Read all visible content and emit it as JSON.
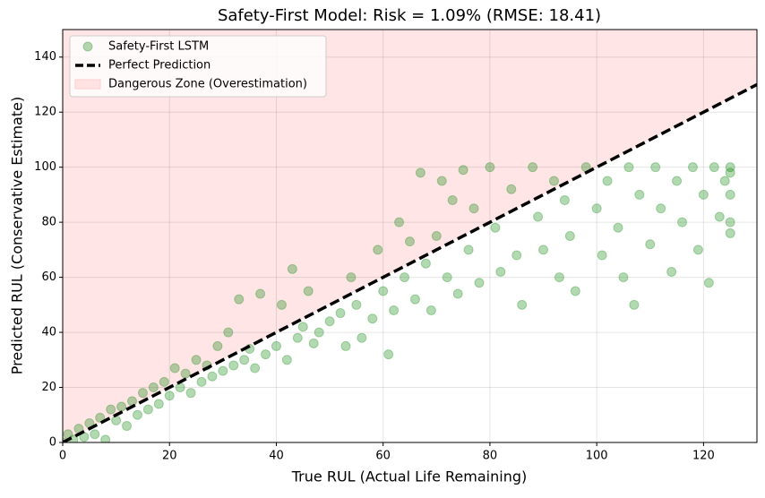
{
  "chart_data": {
    "type": "scatter",
    "title": "Safety-First Model: Risk = 1.09% (RMSE: 18.41)",
    "xlabel": "True RUL (Actual Life Remaining)",
    "ylabel": "Predicted RUL (Conservative Estimate)",
    "xlim": [
      0,
      130
    ],
    "ylim": [
      0,
      150
    ],
    "xticks": [
      0,
      20,
      40,
      60,
      80,
      100,
      120
    ],
    "yticks": [
      0,
      20,
      40,
      60,
      80,
      100,
      120,
      140
    ],
    "grid": true,
    "legend": "upper left",
    "region": {
      "name": "Dangerous Zone (Overestimation)",
      "color": "#ffcccc"
    },
    "line": {
      "name": "Perfect Prediction",
      "color": "#000000",
      "x": [
        0,
        130
      ],
      "y": [
        0,
        130
      ]
    },
    "series": [
      {
        "name": "Safety-First LSTM",
        "color": "#008000",
        "x": [
          0,
          1,
          2,
          3,
          4,
          5,
          6,
          7,
          8,
          9,
          10,
          11,
          12,
          13,
          14,
          15,
          16,
          17,
          18,
          19,
          20,
          21,
          22,
          23,
          24,
          25,
          26,
          27,
          28,
          29,
          30,
          31,
          32,
          33,
          34,
          35,
          36,
          37,
          38,
          40,
          41,
          42,
          43,
          44,
          45,
          46,
          47,
          48,
          50,
          52,
          53,
          54,
          55,
          56,
          58,
          59,
          60,
          61,
          62,
          63,
          64,
          65,
          66,
          67,
          68,
          69,
          70,
          71,
          72,
          73,
          74,
          75,
          76,
          77,
          78,
          80,
          81,
          82,
          84,
          85,
          86,
          88,
          89,
          90,
          92,
          93,
          94,
          95,
          96,
          98,
          100,
          101,
          102,
          104,
          105,
          106,
          107,
          108,
          110,
          111,
          112,
          114,
          115,
          116,
          118,
          119,
          120,
          121,
          122,
          123,
          124,
          125,
          125,
          125,
          125,
          125
        ],
        "y": [
          0,
          3,
          1,
          5,
          2,
          7,
          3,
          9,
          1,
          12,
          8,
          13,
          6,
          15,
          10,
          18,
          12,
          20,
          14,
          22,
          17,
          27,
          20,
          25,
          18,
          30,
          22,
          28,
          24,
          35,
          26,
          40,
          28,
          52,
          30,
          34,
          27,
          54,
          32,
          35,
          50,
          30,
          63,
          38,
          42,
          55,
          36,
          40,
          44,
          47,
          35,
          60,
          50,
          38,
          45,
          70,
          55,
          32,
          48,
          80,
          60,
          73,
          52,
          98,
          65,
          48,
          75,
          95,
          60,
          88,
          54,
          99,
          70,
          85,
          58,
          100,
          78,
          62,
          92,
          68,
          50,
          100,
          82,
          70,
          95,
          60,
          88,
          75,
          55,
          100,
          85,
          68,
          95,
          78,
          60,
          100,
          50,
          90,
          72,
          100,
          85,
          62,
          95,
          80,
          100,
          70,
          90,
          58,
          100,
          82,
          95,
          100,
          90,
          80,
          76,
          98
        ]
      }
    ]
  }
}
